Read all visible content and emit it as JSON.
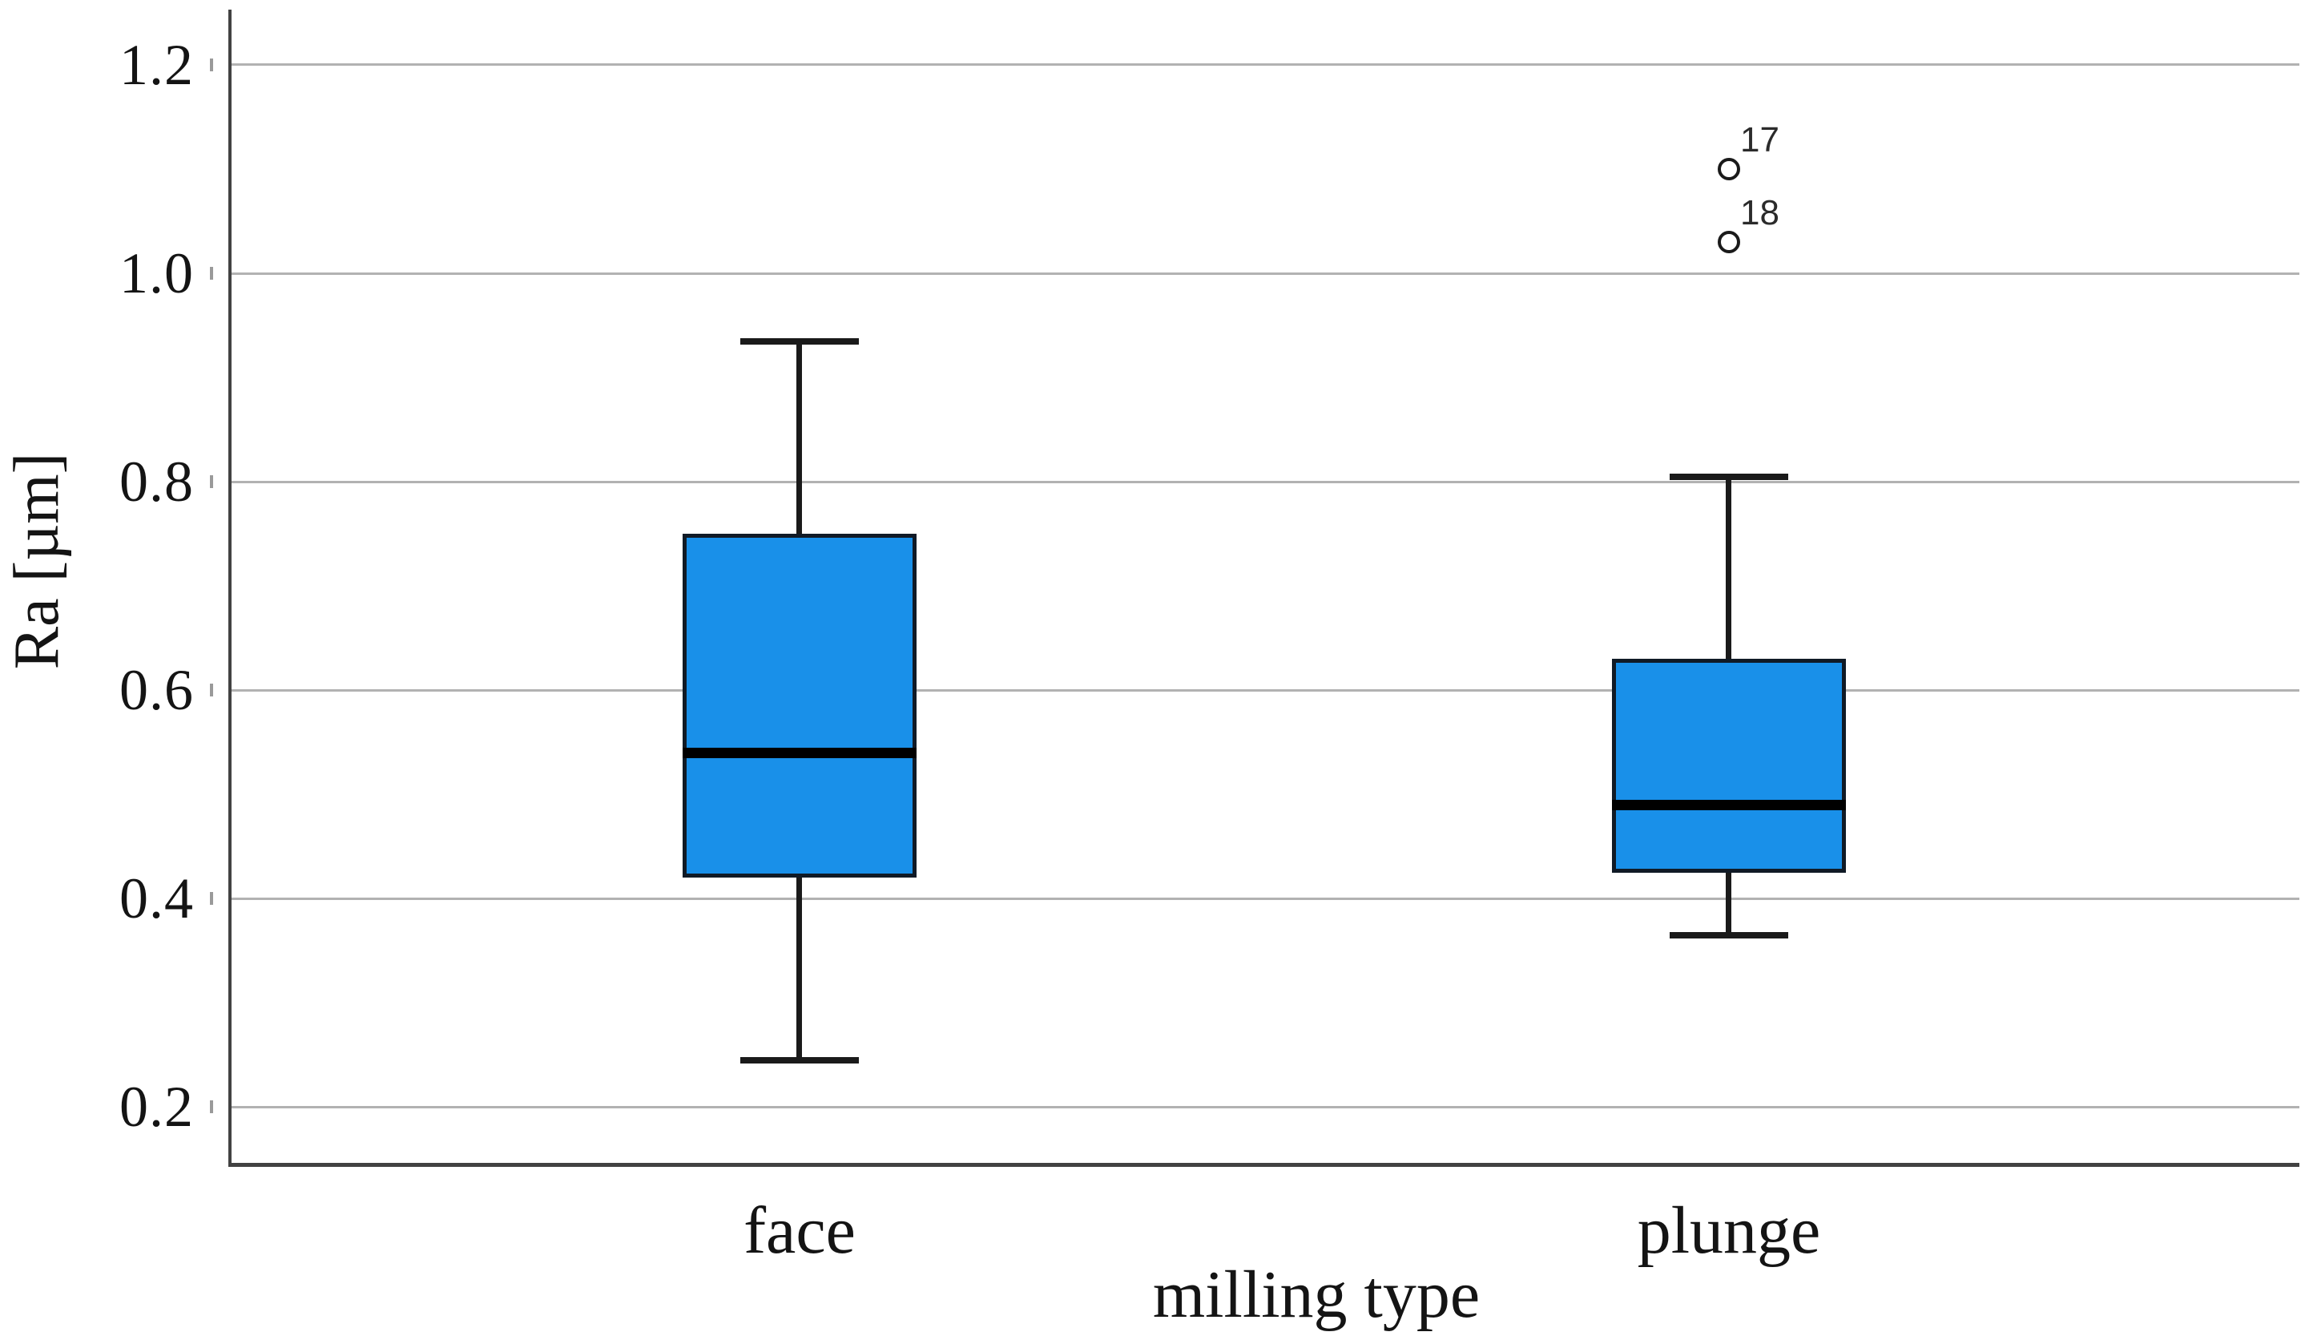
{
  "figure": {
    "background": "#ffffff"
  },
  "chart_data": {
    "type": "box",
    "title": "",
    "xlabel": "milling type",
    "ylabel": "Ra [µm]",
    "categories": [
      "face",
      "plunge"
    ],
    "y_ticks": [
      0.2,
      0.4,
      0.6,
      0.8,
      1.0,
      1.2
    ],
    "y_tick_labels": [
      "0.2",
      "0.4",
      "0.6",
      "0.8",
      "1.0",
      "1.2"
    ],
    "ylim": [
      0.145,
      1.253
    ],
    "grid": true,
    "legend": "none",
    "series": [
      {
        "name": "face",
        "whisker_low": 0.245,
        "q1": 0.42,
        "median": 0.54,
        "q3": 0.75,
        "whisker_high": 0.935,
        "outliers": []
      },
      {
        "name": "plunge",
        "whisker_low": 0.365,
        "q1": 0.425,
        "median": 0.49,
        "q3": 0.63,
        "whisker_high": 0.805,
        "outliers": [
          {
            "value": 1.1,
            "label": "17"
          },
          {
            "value": 1.03,
            "label": "18"
          }
        ]
      }
    ],
    "colors": {
      "box_fill": "#1990e9",
      "box_border": "#101a26",
      "median": "#000000",
      "whisker": "#1a1a1a",
      "gridline": "#b2b2b2",
      "tick": "#9a9a9a",
      "axis": "#424242",
      "text": "#141414"
    }
  }
}
